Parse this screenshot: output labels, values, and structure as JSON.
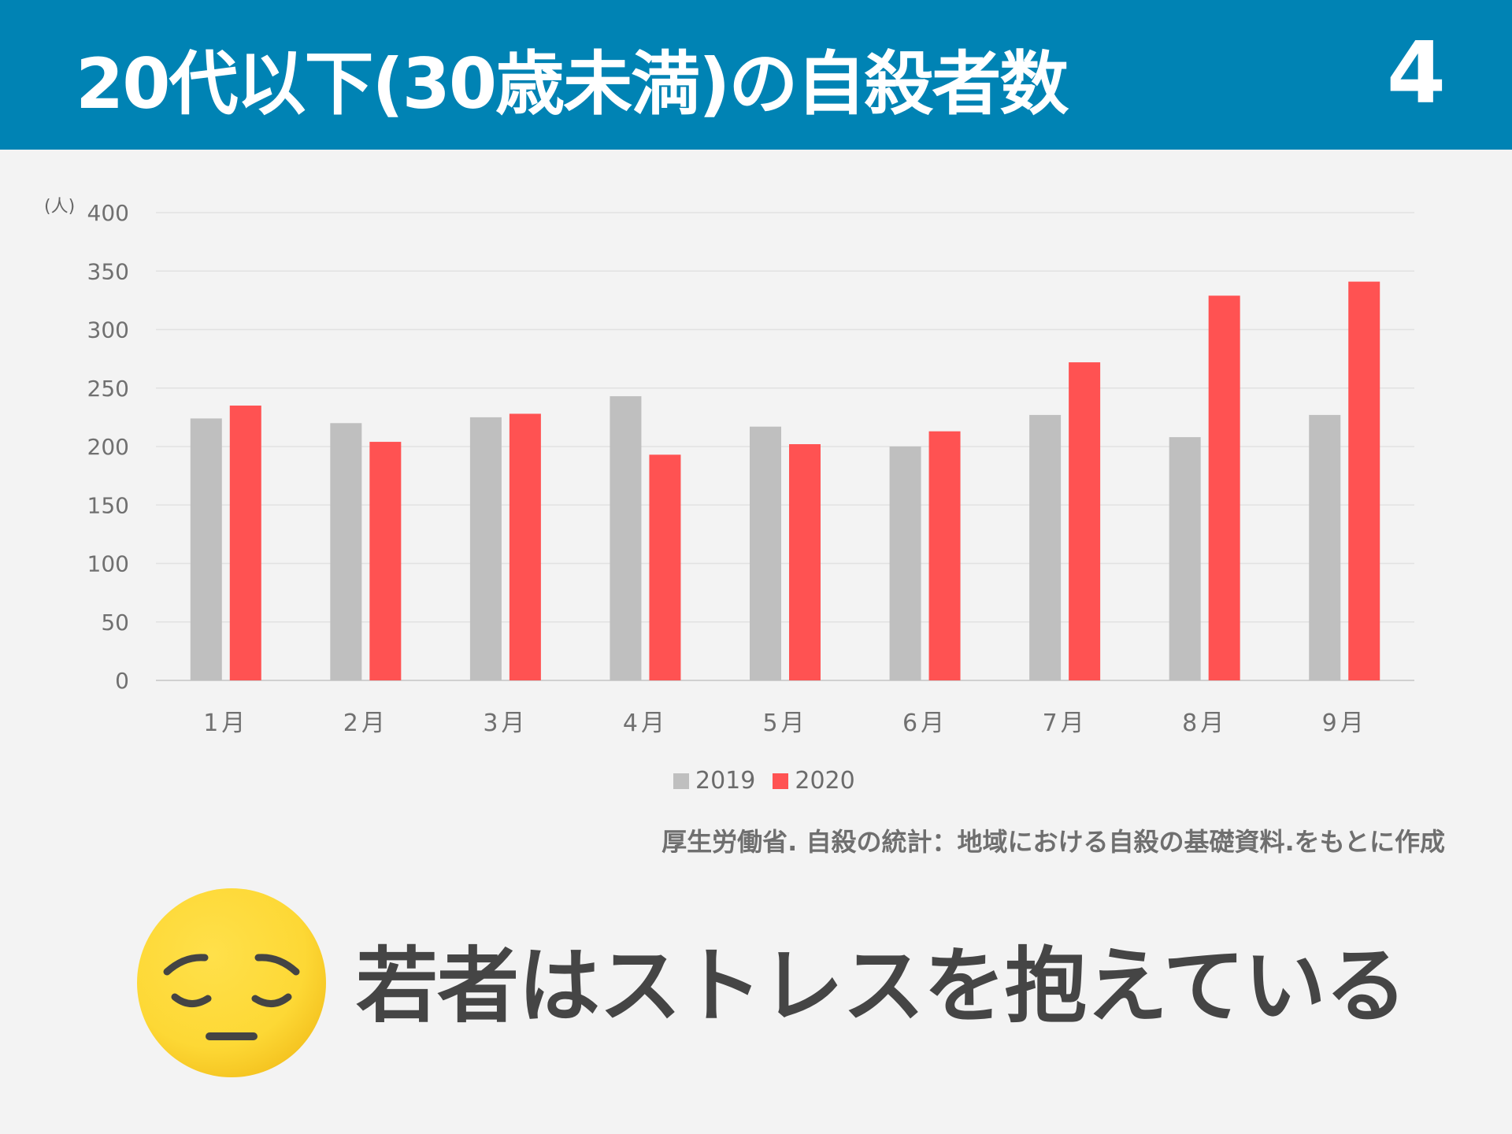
{
  "header": {
    "title": "20代以下(30歳未満)の自殺者数",
    "page_number": "4"
  },
  "colors": {
    "header_bg": "#0083b4",
    "series_2019": "#bfbfbf",
    "series_2020": "#ff5252"
  },
  "chart_data": {
    "type": "bar",
    "categories": [
      "1月",
      "2月",
      "3月",
      "4月",
      "5月",
      "6月",
      "7月",
      "8月",
      "9月"
    ],
    "series": [
      {
        "name": "2019",
        "values": [
          224,
          220,
          225,
          243,
          217,
          200,
          227,
          208,
          227
        ]
      },
      {
        "name": "2020",
        "values": [
          235,
          204,
          228,
          193,
          202,
          213,
          272,
          329,
          341
        ]
      }
    ],
    "y_unit": "(人)",
    "ylim": [
      0,
      400
    ],
    "yticks": [
      0,
      50,
      100,
      150,
      200,
      250,
      300,
      350,
      400
    ],
    "grid": true,
    "legend_position": "bottom-center"
  },
  "source_note": "厚生労働省. 自殺の統計：地域における自殺の基礎資料.をもとに作成",
  "message": {
    "text": "若者はストレスを抱えている",
    "icon": "pensive-face-icon"
  }
}
